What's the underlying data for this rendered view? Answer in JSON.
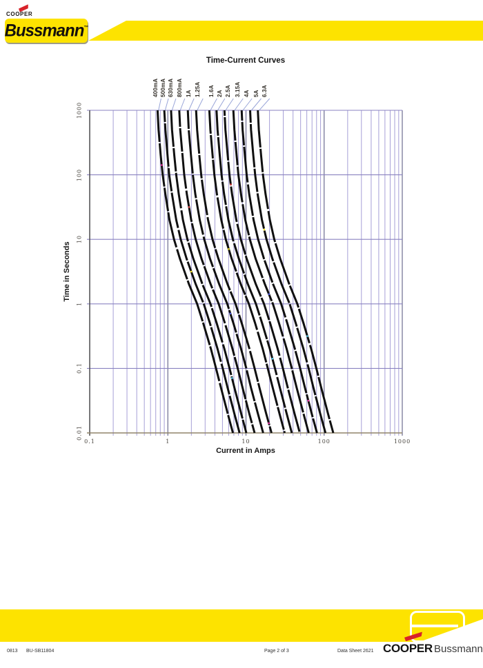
{
  "header": {
    "cooper_label": "COOPER",
    "bussmann_label": "Bussmann",
    "trademark": "™"
  },
  "chart": {
    "title": "Time-Current Curves",
    "x_axis_label": "Current in Amps",
    "y_axis_label": "Time in Seconds"
  },
  "chart_data": {
    "type": "line",
    "title": "Time-Current Curves",
    "xlabel": "Current in Amps",
    "ylabel": "Time in Seconds",
    "x_scale": "log",
    "y_scale": "log",
    "xlim": [
      0.1,
      1000
    ],
    "ylim": [
      0.01,
      1000
    ],
    "x_ticks": [
      0.1,
      1,
      10,
      100,
      1000
    ],
    "x_tick_labels": [
      "0.1",
      "1",
      "10",
      "100",
      "1000"
    ],
    "y_ticks": [
      1000,
      100,
      10,
      1,
      0.1,
      0.01
    ],
    "y_tick_labels": [
      "1000",
      "100",
      "10",
      "1",
      "0.1",
      "0.01"
    ],
    "grid": "vertical log minors + decade majors, horizontal decade majors",
    "legend_position": "labels above curve tops with leader lines",
    "seconds": [
      1000,
      500,
      200,
      100,
      50,
      20,
      10,
      5,
      2,
      1,
      0.5,
      0.2,
      0.1,
      0.05,
      0.02,
      0.01
    ],
    "series": [
      {
        "label": "400mA",
        "rating_amps": 0.4,
        "amps": [
          0.74,
          0.76,
          0.81,
          0.86,
          0.93,
          1.05,
          1.2,
          1.43,
          1.87,
          2.37,
          2.84,
          3.56,
          4.14,
          4.79,
          5.83,
          6.81
        ]
      },
      {
        "label": "500mA",
        "rating_amps": 0.5,
        "amps": [
          0.9,
          0.93,
          0.99,
          1.04,
          1.13,
          1.28,
          1.46,
          1.74,
          2.28,
          2.88,
          3.46,
          4.33,
          5.04,
          5.82,
          7.09,
          8.28
        ]
      },
      {
        "label": "630mA",
        "rating_amps": 0.63,
        "amps": [
          1.1,
          1.13,
          1.21,
          1.28,
          1.38,
          1.56,
          1.78,
          2.12,
          2.78,
          3.52,
          4.22,
          5.29,
          6.16,
          7.12,
          8.67,
          10.1
        ]
      },
      {
        "label": "800mA",
        "rating_amps": 0.8,
        "amps": [
          1.4,
          1.44,
          1.54,
          1.62,
          1.75,
          1.99,
          2.27,
          2.7,
          3.54,
          4.48,
          5.38,
          6.73,
          7.84,
          9.06,
          11.0,
          12.9
        ]
      },
      {
        "label": "1A",
        "rating_amps": 1,
        "amps": [
          1.8,
          1.85,
          1.98,
          2.09,
          2.25,
          2.56,
          2.92,
          3.47,
          4.55,
          5.76,
          6.91,
          8.66,
          10.1,
          11.6,
          14.2,
          16.6
        ]
      },
      {
        "label": "1.25A",
        "rating_amps": 1.25,
        "amps": [
          2.3,
          2.37,
          2.53,
          2.67,
          2.88,
          3.27,
          3.73,
          4.44,
          5.82,
          7.36,
          8.83,
          11.1,
          12.9,
          14.9,
          18.1,
          21.2
        ]
      },
      {
        "label": "1.6A",
        "rating_amps": 1.6,
        "amps": [
          3.4,
          3.5,
          3.74,
          3.94,
          4.25,
          4.83,
          5.51,
          6.56,
          8.6,
          10.9,
          13.1,
          16.4,
          19.0,
          22.0,
          26.8,
          31.3
        ]
      },
      {
        "label": "2A",
        "rating_amps": 2,
        "amps": [
          4.2,
          4.33,
          4.62,
          4.87,
          5.25,
          5.96,
          6.8,
          8.11,
          10.6,
          13.4,
          16.1,
          20.2,
          23.5,
          27.2,
          33.1,
          38.6
        ]
      },
      {
        "label": "2.5A",
        "rating_amps": 2.5,
        "amps": [
          5.3,
          5.46,
          5.83,
          6.15,
          6.63,
          7.53,
          8.59,
          10.2,
          13.4,
          17.0,
          20.4,
          25.5,
          29.7,
          34.3,
          41.8,
          48.8
        ]
      },
      {
        "label": "3.15A",
        "rating_amps": 3.15,
        "amps": [
          6.9,
          7.11,
          7.59,
          8.0,
          8.63,
          9.8,
          11.2,
          13.3,
          17.5,
          22.1,
          26.5,
          33.2,
          38.6,
          44.6,
          54.4,
          63.5
        ]
      },
      {
        "label": "4A",
        "rating_amps": 4,
        "amps": [
          8.8,
          9.06,
          9.68,
          10.2,
          11.0,
          12.5,
          14.3,
          17.0,
          22.3,
          28.2,
          33.8,
          42.3,
          49.3,
          56.9,
          69.3,
          81.0
        ]
      },
      {
        "label": "5A",
        "rating_amps": 5,
        "amps": [
          11.3,
          11.6,
          12.4,
          13.1,
          14.1,
          16.0,
          18.3,
          21.8,
          28.6,
          36.2,
          43.4,
          54.4,
          63.3,
          73.1,
          89.0,
          104
        ]
      },
      {
        "label": "6.3A",
        "rating_amps": 6.3,
        "amps": [
          14.2,
          14.6,
          15.6,
          16.5,
          17.8,
          20.2,
          23.0,
          27.4,
          35.9,
          45.4,
          54.5,
          68.3,
          79.5,
          91.9,
          112,
          131
        ]
      }
    ]
  },
  "footer": {
    "code_left_1": "0813",
    "code_left_2": "BU-SB11804",
    "page_label": "Page 2 of 3",
    "sheet_label": "Data Sheet 2621",
    "cooper_label": "COOPER",
    "bussmann_label": "Bussmann"
  },
  "colors": {
    "brand_yellow": "#fde300",
    "brand_red": "#d8232a",
    "curve": "#101010",
    "grid_minor": "#a69fd6",
    "grid_major": "#6b6b8f",
    "grid_major_h": "#8a82c0",
    "axis": "#4a4a4a",
    "axis_x": "#8f8468",
    "leader": "#98a4d8",
    "specks": [
      "#e62fa0",
      "#f5e32a",
      "#54c8e8",
      "#e04545",
      "#4a58d8"
    ]
  }
}
